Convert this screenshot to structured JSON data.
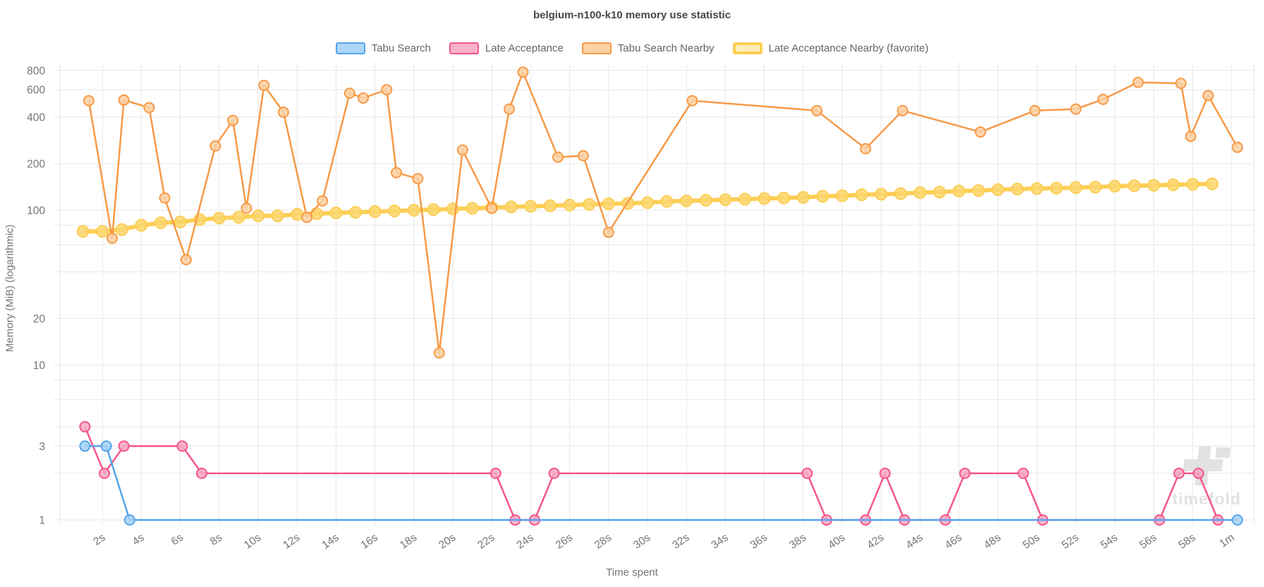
{
  "title": "belgium-n100-k10 memory use statistic",
  "watermark_text": "timefold",
  "theme": {
    "background": "#ffffff",
    "grid_color": "#e7e7e7",
    "tick_text_color": "#757575",
    "title_color": "#474747",
    "legend_text_color": "#666666",
    "watermark_color": "#e2e2e2"
  },
  "chart_data": {
    "type": "line",
    "title": "belgium-n100-k10 memory use statistic",
    "xlabel": "Time spent",
    "ylabel": "Memory (MiB) (logarithmic)",
    "x_unit": "seconds",
    "y_scale": "log",
    "x_range_seconds": [
      0,
      61
    ],
    "y_range": [
      1,
      800
    ],
    "grid": true,
    "legend_position": "top",
    "y_ticks_labeled": [
      {
        "v": 800,
        "label": "800"
      },
      {
        "v": 600,
        "label": "600"
      },
      {
        "v": 400,
        "label": "400"
      },
      {
        "v": 200,
        "label": "200"
      },
      {
        "v": 100,
        "label": "100"
      },
      {
        "v": 20,
        "label": "20"
      },
      {
        "v": 10,
        "label": "10"
      },
      {
        "v": 3,
        "label": "3"
      },
      {
        "v": 1,
        "label": "1"
      }
    ],
    "y_gridlines": [
      1,
      2,
      3,
      4,
      6,
      8,
      10,
      20,
      40,
      60,
      80,
      100,
      200,
      400,
      600,
      800
    ],
    "x_ticks": [
      {
        "t": 2,
        "label": "2s"
      },
      {
        "t": 4,
        "label": "4s"
      },
      {
        "t": 6,
        "label": "6s"
      },
      {
        "t": 8,
        "label": "8s"
      },
      {
        "t": 10,
        "label": "10s"
      },
      {
        "t": 12,
        "label": "12s"
      },
      {
        "t": 14,
        "label": "14s"
      },
      {
        "t": 16,
        "label": "16s"
      },
      {
        "t": 18,
        "label": "18s"
      },
      {
        "t": 20,
        "label": "20s"
      },
      {
        "t": 22,
        "label": "22s"
      },
      {
        "t": 24,
        "label": "24s"
      },
      {
        "t": 26,
        "label": "26s"
      },
      {
        "t": 28,
        "label": "28s"
      },
      {
        "t": 30,
        "label": "30s"
      },
      {
        "t": 32,
        "label": "32s"
      },
      {
        "t": 34,
        "label": "34s"
      },
      {
        "t": 36,
        "label": "36s"
      },
      {
        "t": 38,
        "label": "38s"
      },
      {
        "t": 40,
        "label": "40s"
      },
      {
        "t": 42,
        "label": "42s"
      },
      {
        "t": 44,
        "label": "44s"
      },
      {
        "t": 46,
        "label": "46s"
      },
      {
        "t": 48,
        "label": "48s"
      },
      {
        "t": 50,
        "label": "50s"
      },
      {
        "t": 52,
        "label": "52s"
      },
      {
        "t": 54,
        "label": "54s"
      },
      {
        "t": 56,
        "label": "56s"
      },
      {
        "t": 58,
        "label": "58s"
      },
      {
        "t": 60,
        "label": "1m"
      }
    ],
    "series": [
      {
        "name": "Tabu Search",
        "color": "#54a4ea",
        "point_fill": "#a5d2f4",
        "swatch_fill": "#aed6f7",
        "swatch_border_width": 2,
        "line_width": 2.5,
        "point_radius": 7,
        "points": [
          [
            1.1,
            3
          ],
          [
            2.2,
            3
          ],
          [
            3.4,
            1
          ],
          [
            60.3,
            1
          ]
        ]
      },
      {
        "name": "Late Acceptance",
        "color": "#f4568c",
        "point_fill": "#f7a8c4",
        "swatch_fill": "#f9b2ca",
        "swatch_border_width": 2,
        "line_width": 2.5,
        "point_radius": 7,
        "points": [
          [
            1.1,
            4
          ],
          [
            2.1,
            2
          ],
          [
            3.1,
            3
          ],
          [
            6.1,
            3
          ],
          [
            7.1,
            2
          ],
          [
            22.2,
            2
          ],
          [
            23.2,
            1
          ],
          [
            24.2,
            1
          ],
          [
            25.2,
            2
          ],
          [
            38.2,
            2
          ],
          [
            39.2,
            1
          ],
          [
            41.2,
            1
          ],
          [
            42.2,
            2
          ],
          [
            43.2,
            1
          ],
          [
            45.3,
            1
          ],
          [
            46.3,
            2
          ],
          [
            49.3,
            2
          ],
          [
            50.3,
            1
          ],
          [
            56.3,
            1
          ],
          [
            57.3,
            2
          ],
          [
            58.3,
            2
          ],
          [
            59.3,
            1
          ]
        ]
      },
      {
        "name": "Tabu Search Nearby",
        "color": "#f79a47",
        "point_fill": "#fbd0a2",
        "swatch_fill": "#fbd2a4",
        "swatch_border_width": 2,
        "line_width": 2.5,
        "point_radius": 7,
        "points": [
          [
            1.3,
            510
          ],
          [
            2.5,
            66
          ],
          [
            3.1,
            515
          ],
          [
            4.4,
            460
          ],
          [
            5.2,
            120
          ],
          [
            6.3,
            48
          ],
          [
            7.8,
            260
          ],
          [
            8.7,
            380
          ],
          [
            9.4,
            103
          ],
          [
            10.3,
            640
          ],
          [
            11.3,
            430
          ],
          [
            12.5,
            90
          ],
          [
            13.3,
            115
          ],
          [
            14.7,
            570
          ],
          [
            15.4,
            530
          ],
          [
            16.6,
            600
          ],
          [
            17.1,
            175
          ],
          [
            18.2,
            160
          ],
          [
            19.3,
            12
          ],
          [
            20.5,
            245
          ],
          [
            22,
            103
          ],
          [
            22.9,
            450
          ],
          [
            23.6,
            780
          ],
          [
            25.4,
            220
          ],
          [
            26.7,
            225
          ],
          [
            28,
            72
          ],
          [
            32.3,
            510
          ],
          [
            38.7,
            440
          ],
          [
            41.2,
            250
          ],
          [
            43.1,
            440
          ],
          [
            47.1,
            320
          ],
          [
            49.9,
            440
          ],
          [
            52,
            450
          ],
          [
            53.4,
            520
          ],
          [
            55.2,
            670
          ],
          [
            57.4,
            660
          ],
          [
            57.9,
            300
          ],
          [
            58.8,
            550
          ],
          [
            60.3,
            255
          ]
        ]
      },
      {
        "name": "Late Acceptance Nearby (favorite)",
        "color": "#fcce54",
        "point_fill": "#fcd66e",
        "swatch_fill": "#fdedba",
        "swatch_border_width": 4,
        "line_width": 6,
        "point_radius": 8,
        "points": [
          [
            1,
            73
          ],
          [
            2,
            73
          ],
          [
            3,
            75
          ],
          [
            4,
            80
          ],
          [
            5,
            83
          ],
          [
            6,
            84
          ],
          [
            7,
            87
          ],
          [
            8,
            89
          ],
          [
            9,
            90
          ],
          [
            10,
            92
          ],
          [
            11,
            92
          ],
          [
            12,
            94
          ],
          [
            13,
            95
          ],
          [
            14,
            96
          ],
          [
            15,
            97
          ],
          [
            16,
            98
          ],
          [
            17,
            99
          ],
          [
            18,
            100
          ],
          [
            19,
            101
          ],
          [
            20,
            102
          ],
          [
            21,
            103
          ],
          [
            22,
            104
          ],
          [
            23,
            105
          ],
          [
            24,
            106
          ],
          [
            25,
            107
          ],
          [
            26,
            108
          ],
          [
            27,
            109
          ],
          [
            28,
            110
          ],
          [
            29,
            111
          ],
          [
            30,
            112
          ],
          [
            31,
            114
          ],
          [
            32,
            115
          ],
          [
            33,
            116
          ],
          [
            34,
            117
          ],
          [
            35,
            118
          ],
          [
            36,
            119
          ],
          [
            37,
            120
          ],
          [
            38,
            121
          ],
          [
            39,
            123
          ],
          [
            40,
            124
          ],
          [
            41,
            126
          ],
          [
            42,
            127
          ],
          [
            43,
            128
          ],
          [
            44,
            130
          ],
          [
            45,
            131
          ],
          [
            46,
            133
          ],
          [
            47,
            134
          ],
          [
            48,
            136
          ],
          [
            49,
            137
          ],
          [
            50,
            138
          ],
          [
            51,
            139
          ],
          [
            52,
            140
          ],
          [
            53,
            141
          ],
          [
            54,
            143
          ],
          [
            55,
            144
          ],
          [
            56,
            145
          ],
          [
            57,
            146
          ],
          [
            58,
            147
          ],
          [
            59,
            148
          ]
        ]
      }
    ]
  }
}
